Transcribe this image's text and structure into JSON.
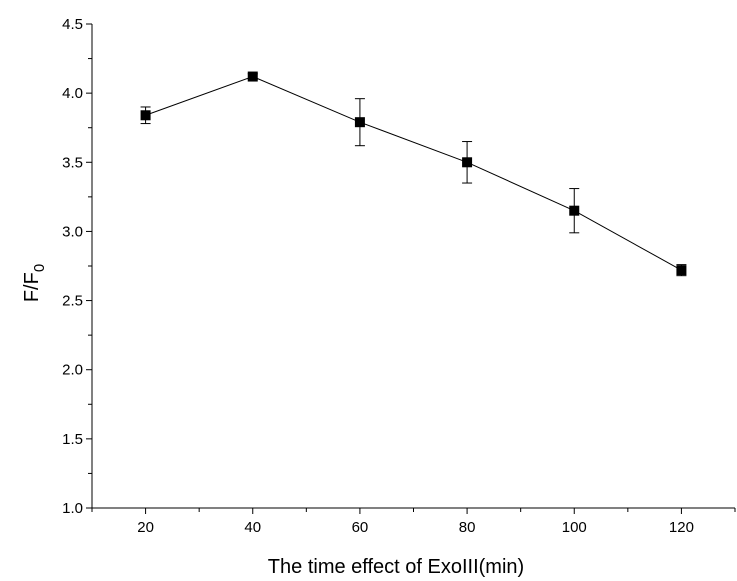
{
  "chart_data": {
    "type": "line",
    "xlabel": "The time effect of ExoIII(min)",
    "ylabel": "F/F",
    "ylabel_subscript": "0",
    "xlim": [
      10,
      130
    ],
    "ylim": [
      1.0,
      4.5
    ],
    "xticks": [
      20,
      40,
      60,
      80,
      100,
      120
    ],
    "xtick_labels": [
      "20",
      "40",
      "60",
      "80",
      "100",
      "120"
    ],
    "yticks": [
      1.0,
      1.5,
      2.0,
      2.5,
      3.0,
      3.5,
      4.0,
      4.5
    ],
    "ytick_labels": [
      "1.0",
      "1.5",
      "2.0",
      "2.5",
      "3.0",
      "3.5",
      "4.0",
      "4.5"
    ],
    "grid": false,
    "series": [
      {
        "x": [
          20,
          40,
          60,
          80,
          100,
          120
        ],
        "y": [
          3.84,
          4.12,
          3.79,
          3.5,
          3.15,
          2.72
        ],
        "error": [
          0.06,
          0.02,
          0.17,
          0.15,
          0.16,
          0.04
        ],
        "marker": "square",
        "color": "#000000"
      }
    ]
  }
}
